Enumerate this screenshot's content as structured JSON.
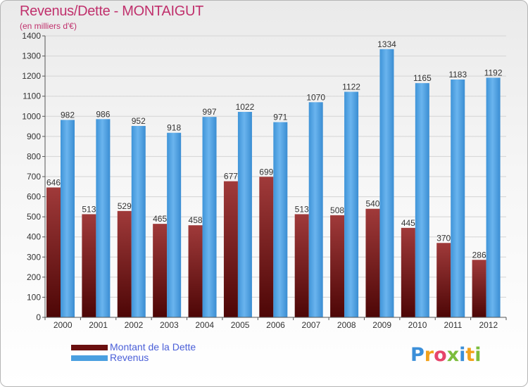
{
  "chart_data": {
    "type": "bar",
    "title": "Revenus/Dette - MONTAIGUT",
    "subtitle": "(en milliers d'€)",
    "categories": [
      "2000",
      "2001",
      "2002",
      "2003",
      "2004",
      "2005",
      "2006",
      "2007",
      "2008",
      "2009",
      "2010",
      "2011",
      "2012"
    ],
    "series": [
      {
        "name": "Montant de la Dette",
        "color": "#7a1a1a",
        "values": [
          646,
          513,
          529,
          465,
          458,
          677,
          699,
          513,
          508,
          540,
          445,
          370,
          286
        ]
      },
      {
        "name": "Revenus",
        "color": "#4a9fe0",
        "values": [
          982,
          986,
          952,
          918,
          997,
          1022,
          971,
          1070,
          1122,
          1334,
          1165,
          1183,
          1192
        ]
      }
    ],
    "ylim": [
      0,
      1400
    ],
    "yticks": [
      0,
      100,
      200,
      300,
      400,
      500,
      600,
      700,
      800,
      900,
      1000,
      1100,
      1200,
      1300,
      1400
    ],
    "grid": true,
    "legend": "bottom-left"
  },
  "legend": {
    "items": [
      {
        "label": "Montant de la Dette",
        "color": "#6a0f0f"
      },
      {
        "label": "Revenus",
        "color": "#4a9fe0"
      }
    ]
  },
  "logo": {
    "text": "Proxiti"
  }
}
